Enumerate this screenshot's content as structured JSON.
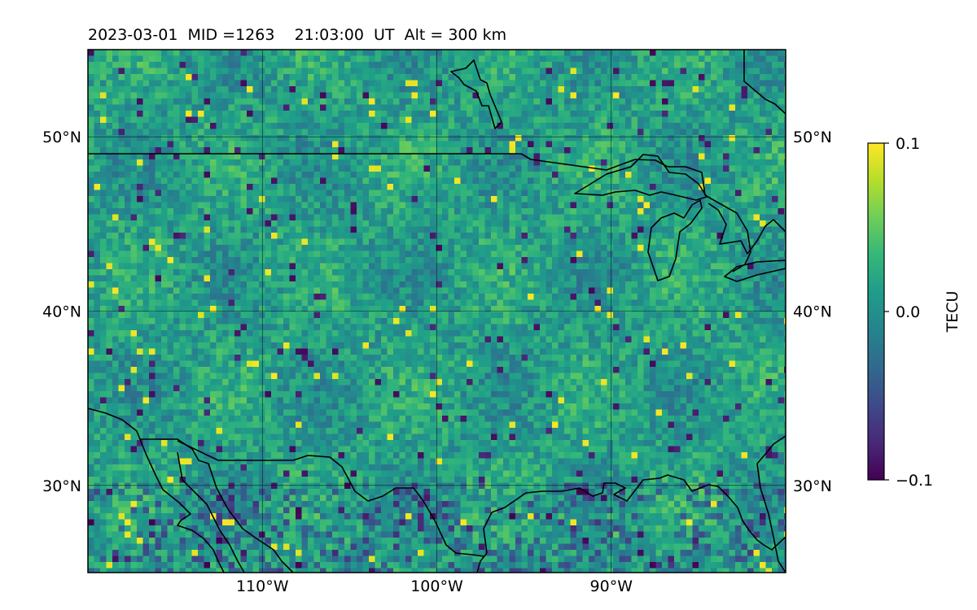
{
  "header": {
    "title": "2023-03-01  MID =1263    21:03:00  UT  Alt = 300 km"
  },
  "map": {
    "projection": "PlateCarree",
    "extent": {
      "lon_min": -120,
      "lon_max": -80,
      "lat_min": 25,
      "lat_max": 55
    },
    "grid": "on",
    "colormap": "viridis",
    "xticks": [
      {
        "lon": -110,
        "label": "110°W"
      },
      {
        "lon": -100,
        "label": "100°W"
      },
      {
        "lon": -90,
        "label": "90°W"
      }
    ],
    "yticks_left": [
      {
        "lat": 50,
        "label": "50°N"
      },
      {
        "lat": 40,
        "label": "40°N"
      },
      {
        "lat": 30,
        "label": "30°N"
      }
    ],
    "yticks_right": [
      {
        "lat": 50,
        "label": "50°N"
      },
      {
        "lat": 40,
        "label": "40°N"
      },
      {
        "lat": 30,
        "label": "30°N"
      }
    ],
    "field": {
      "description_hidden": false,
      "units": "TECU",
      "vmin": -0.1,
      "vmax": 0.1
    }
  },
  "colorbar": {
    "label": "TECU",
    "ticks": [
      {
        "value": 0.1,
        "label": "0.1"
      },
      {
        "value": 0.0,
        "label": "0.0"
      },
      {
        "value": -0.1,
        "label": "−0.1"
      }
    ],
    "colors": [
      "#440154",
      "#482878",
      "#3e4989",
      "#31688e",
      "#26828e",
      "#1f9e89",
      "#35b779",
      "#6ece58",
      "#b5de2b",
      "#fde725"
    ]
  }
}
